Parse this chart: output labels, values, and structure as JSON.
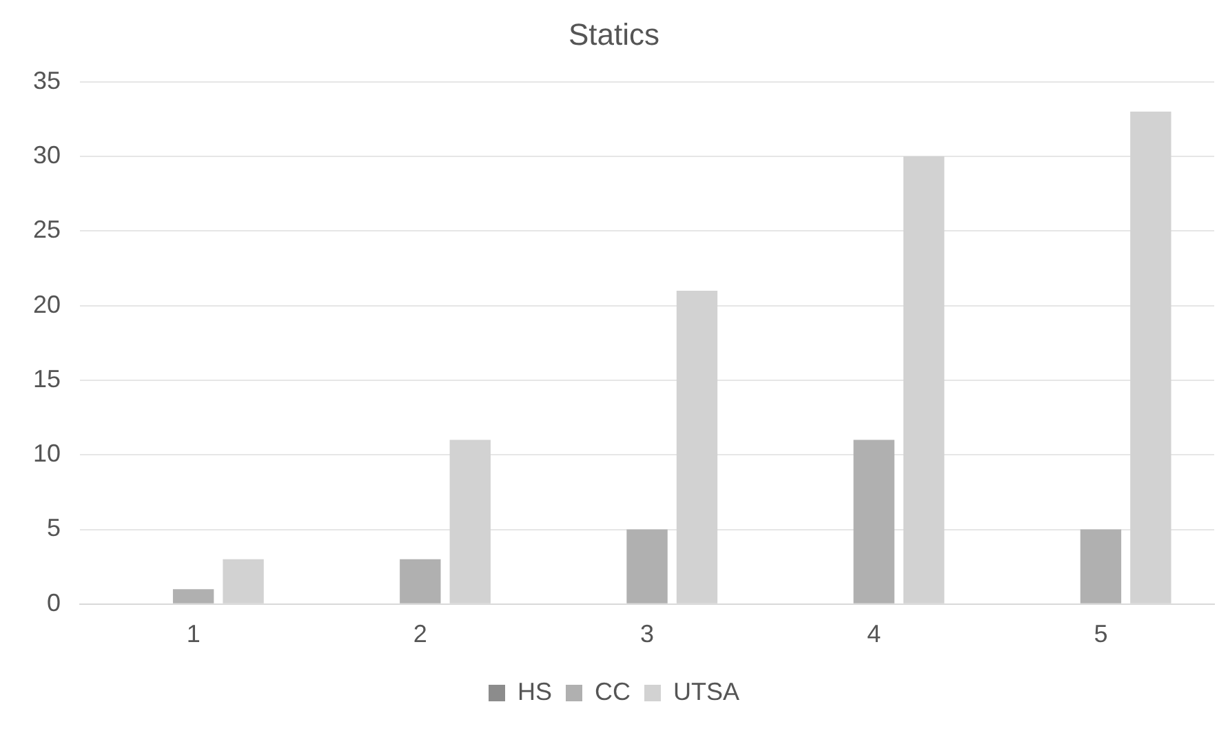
{
  "chart_data": {
    "type": "bar",
    "title": "Statics",
    "categories": [
      "1",
      "2",
      "3",
      "4",
      "5"
    ],
    "series": [
      {
        "name": "HS",
        "color": "#8c8c8c",
        "values": [
          0,
          0,
          0,
          0,
          0
        ]
      },
      {
        "name": "CC",
        "color": "#b0b0b0",
        "values": [
          1,
          3,
          5,
          11,
          5
        ]
      },
      {
        "name": "UTSA",
        "color": "#d2d2d2",
        "values": [
          3,
          11,
          21,
          30,
          33
        ]
      }
    ],
    "ylim": [
      0,
      35
    ],
    "yticks": [
      0,
      5,
      10,
      15,
      20,
      25,
      30,
      35
    ],
    "grid": "y",
    "legend": "bottom"
  }
}
